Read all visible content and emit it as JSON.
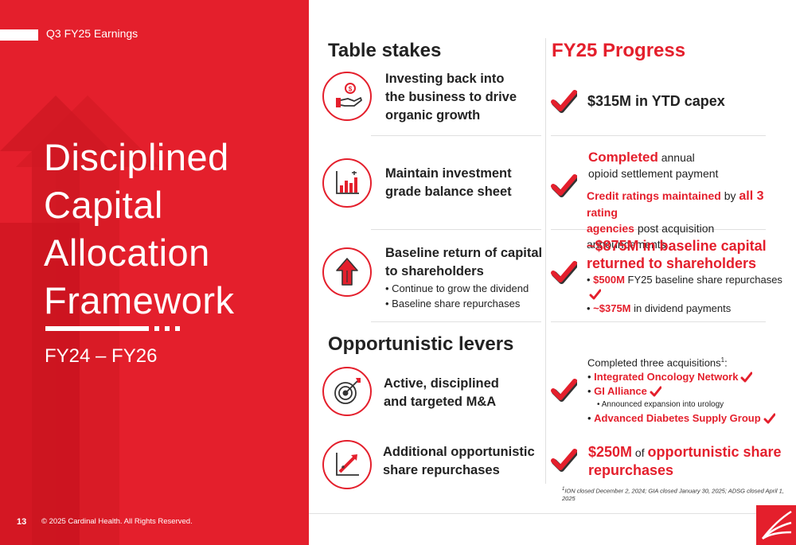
{
  "header": {
    "tag": "Q3 FY25 Earnings"
  },
  "title": {
    "line1": "Disciplined",
    "line2": "Capital",
    "line3": "Allocation",
    "line4": "Framework"
  },
  "period": "FY24 – FY26",
  "footer": {
    "page": "13",
    "copyright": "© 2025 Cardinal Health. All Rights Reserved."
  },
  "table_stakes": {
    "heading": "Table stakes",
    "items": [
      {
        "line1": "Investing back into",
        "line2": "the business to drive",
        "line3": "organic growth",
        "icon": "hand-coin-icon"
      },
      {
        "line1": "Maintain investment",
        "line2": "grade balance sheet",
        "icon": "bar-chart-icon"
      },
      {
        "line1": "Baseline return of capital",
        "line2": "to shareholders",
        "bullets": [
          "Continue to grow the dividend",
          "Baseline share repurchases"
        ],
        "icon": "up-arrow-icon"
      }
    ]
  },
  "opportunistic": {
    "heading": "Opportunistic levers",
    "items": [
      {
        "line1": "Active, disciplined",
        "line2": "and targeted M&A",
        "icon": "target-icon"
      },
      {
        "line1": "Additional opportunistic",
        "line2": "share repurchases",
        "icon": "growth-chart-icon"
      }
    ]
  },
  "progress": {
    "heading": "FY25 Progress",
    "capex": "$315M in YTD capex",
    "settlement": {
      "strong": "Completed",
      "rest1": " annual",
      "rest2": "opioid settlement payment"
    },
    "ratings": {
      "p1": "Credit ratings maintained",
      "p2": " by ",
      "p3": "all 3",
      "p4": " rating",
      "p5": "agencies",
      "p6": " post acquisition announcements"
    },
    "baseline": {
      "line1": "~$875M in baseline capital",
      "line2": "returned to shareholders",
      "b1_strong": "$500M",
      "b1_rest": " FY25 baseline share repurchases",
      "b2_strong": "~$375M",
      "b2_rest": " in dividend payments"
    },
    "acquisitions": {
      "intro": "Completed three acquisitions",
      "sup": "1",
      "colon": ":",
      "items": [
        "Integrated Oncology Network",
        "GI Alliance",
        "Advanced Diabetes Supply Group"
      ],
      "sub": "Announced expansion into urology"
    },
    "repurchase": {
      "p1": "$250M",
      "p2": " of ",
      "p3": "opportunistic share",
      "p4": "repurchases"
    },
    "footnote": {
      "sup": "1",
      "text": "ION closed December 2, 2024; GIA closed January 30, 2025; ADSG closed April 1, 2025"
    }
  },
  "colors": {
    "brand_red": "#e41f2c",
    "dark_red": "#c8101d",
    "text": "#222222"
  }
}
